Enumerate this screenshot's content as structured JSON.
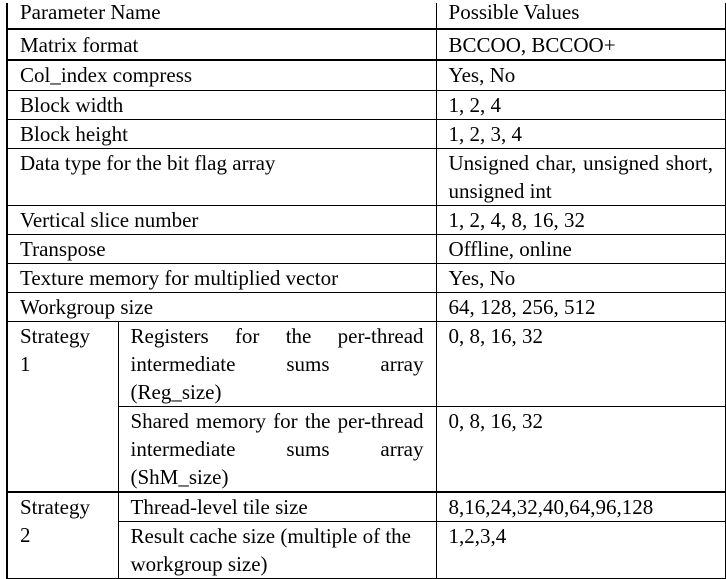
{
  "table": {
    "header": {
      "param": "Parameter Name",
      "values": "Possible Values"
    },
    "rows": [
      {
        "param": "Matrix format",
        "values": "BCCOO, BCCOO+"
      },
      {
        "param": "Col_index compress",
        "values": "Yes, No"
      },
      {
        "param": "Block width",
        "values": "1, 2, 4"
      },
      {
        "param": "Block height",
        "values": "1, 2, 3, 4"
      },
      {
        "param": "Data type for the bit flag array",
        "values": "Unsigned char, unsigned short, unsigned int"
      },
      {
        "param": "Vertical slice number",
        "values": "1, 2, 4, 8, 16, 32"
      },
      {
        "param": "Transpose",
        "values": "Offline, online"
      },
      {
        "param": "Texture memory for multiplied vector",
        "values": "Yes, No"
      },
      {
        "param": "Workgroup size",
        "values": "64, 128, 256, 512"
      }
    ],
    "strategy1": {
      "label": "Strategy 1",
      "rows": [
        {
          "param": "Registers for the per-thread intermediate sums array (Reg_size)",
          "values": "0, 8, 16, 32"
        },
        {
          "param": "Shared memory for the per-thread intermediate sums array (ShM_size)",
          "values": "0, 8, 16, 32"
        }
      ]
    },
    "strategy2": {
      "label": "Strategy 2",
      "rows": [
        {
          "param": "Thread-level tile size",
          "values": "8,16,24,32,40,64,96,128"
        },
        {
          "param": "Result cache size (multiple of the workgroup size)",
          "values": "1,2,3,4"
        }
      ]
    }
  }
}
